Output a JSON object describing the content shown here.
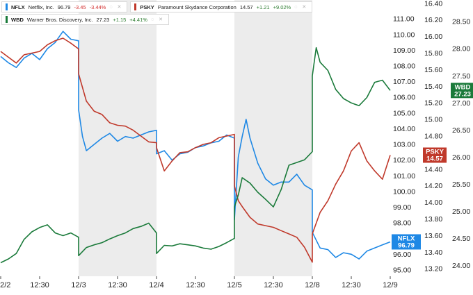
{
  "legend": [
    {
      "symbol": "NFLX",
      "name": "Netflix, Inc.",
      "last": "96.79",
      "change": "-3.45",
      "change_pct": "-3.44%",
      "color": "#1e88e5",
      "change_color": "#d32f2f"
    },
    {
      "symbol": "PSKY",
      "name": "Paramount Skydance Corporation",
      "last": "14.57",
      "change": "+1.21",
      "change_pct": "+9.02%",
      "color": "#c0392b",
      "change_color": "#2e7d32"
    },
    {
      "symbol": "WBD",
      "name": "Warner Bros. Discovery, Inc.",
      "last": "27.23",
      "change": "+1.15",
      "change_pct": "+4.41%",
      "color": "#1a7a3a",
      "change_color": "#2e7d32"
    }
  ],
  "chart_data": {
    "type": "line",
    "x_ticks": [
      "12/2",
      "12:30",
      "12/3",
      "12:30",
      "12/4",
      "12:30",
      "12/5",
      "12:30",
      "12/8",
      "12:30",
      "12/9"
    ],
    "shaded_sessions": [
      "12/3",
      "12/5"
    ],
    "y_axes": [
      {
        "series": "NFLX",
        "side": "right",
        "ylim": [
          94.6,
          112.2
        ],
        "ticks": [
          "95.00",
          "96.00",
          "97.00",
          "98.00",
          "99.00",
          "100.00",
          "101.00",
          "102.00",
          "103.00",
          "104.00",
          "105.00",
          "106.00",
          "107.00",
          "108.00",
          "109.00",
          "110.00",
          "111.00"
        ]
      },
      {
        "series": "PSKY",
        "side": "right",
        "ylim": [
          13.11,
          16.44
        ],
        "ticks": [
          "13.20",
          "13.40",
          "13.60",
          "13.80",
          "14.00",
          "14.20",
          "14.40",
          "14.60",
          "14.80",
          "15.00",
          "15.20",
          "15.40",
          "15.60",
          "15.80",
          "16.00",
          "16.20",
          "16.40"
        ]
      },
      {
        "series": "WBD",
        "side": "right",
        "ylim": [
          23.8,
          28.9
        ],
        "ticks": [
          "24.00",
          "24.50",
          "25.00",
          "25.50",
          "26.00",
          "26.50",
          "27.00",
          "27.50",
          "28.00",
          "28.50"
        ]
      }
    ],
    "badges": [
      {
        "series": "WBD",
        "lines": [
          "WBD",
          "27.23"
        ],
        "value": 27.23,
        "color": "#1a7a3a"
      },
      {
        "series": "PSKY",
        "lines": [
          "PSKY",
          "14.57"
        ],
        "value": 14.57,
        "color": "#c0392b"
      },
      {
        "series": "NFLX",
        "lines": [
          "NFLX",
          "96.79"
        ],
        "value": 96.79,
        "color": "#1e88e5"
      }
    ],
    "series": [
      {
        "name": "NFLX",
        "color": "#1e88e5",
        "points": [
          [
            0,
            108.6
          ],
          [
            0.1,
            108.2
          ],
          [
            0.2,
            107.9
          ],
          [
            0.3,
            108.5
          ],
          [
            0.4,
            108.8
          ],
          [
            0.5,
            108.4
          ],
          [
            0.6,
            109.1
          ],
          [
            0.7,
            109.5
          ],
          [
            0.8,
            110.2
          ],
          [
            0.9,
            109.7
          ],
          [
            1.0,
            109.6
          ],
          [
            1.0,
            105.2
          ],
          [
            1.05,
            103.5
          ],
          [
            1.1,
            102.6
          ],
          [
            1.2,
            103.0
          ],
          [
            1.3,
            103.4
          ],
          [
            1.4,
            103.7
          ],
          [
            1.5,
            103.2
          ],
          [
            1.6,
            103.5
          ],
          [
            1.7,
            103.4
          ],
          [
            1.8,
            103.6
          ],
          [
            1.9,
            103.8
          ],
          [
            2.0,
            103.9
          ],
          [
            2.0,
            102.4
          ],
          [
            2.1,
            102.6
          ],
          [
            2.2,
            102.0
          ],
          [
            2.3,
            102.4
          ],
          [
            2.4,
            102.5
          ],
          [
            2.5,
            102.8
          ],
          [
            2.6,
            102.9
          ],
          [
            2.7,
            103.1
          ],
          [
            2.8,
            103.2
          ],
          [
            2.9,
            103.6
          ],
          [
            3.0,
            103.4
          ],
          [
            3.0,
            98.2
          ],
          [
            3.05,
            102.2
          ],
          [
            3.1,
            103.5
          ],
          [
            3.15,
            104.6
          ],
          [
            3.2,
            103.4
          ],
          [
            3.3,
            101.8
          ],
          [
            3.4,
            100.8
          ],
          [
            3.5,
            100.4
          ],
          [
            3.6,
            100.6
          ],
          [
            3.7,
            100.6
          ],
          [
            3.8,
            101.1
          ],
          [
            3.9,
            100.4
          ],
          [
            4.0,
            100.1
          ],
          [
            4.0,
            97.4
          ],
          [
            4.1,
            96.4
          ],
          [
            4.2,
            96.3
          ],
          [
            4.3,
            95.8
          ],
          [
            4.4,
            96.1
          ],
          [
            4.5,
            96.0
          ],
          [
            4.6,
            95.7
          ],
          [
            4.7,
            96.2
          ],
          [
            4.8,
            96.4
          ],
          [
            4.9,
            96.6
          ],
          [
            5.0,
            96.79
          ]
        ]
      },
      {
        "name": "PSKY",
        "color": "#c0392b",
        "points": [
          [
            0,
            15.82
          ],
          [
            0.1,
            15.75
          ],
          [
            0.2,
            15.68
          ],
          [
            0.3,
            15.78
          ],
          [
            0.4,
            15.8
          ],
          [
            0.5,
            15.82
          ],
          [
            0.6,
            15.9
          ],
          [
            0.7,
            15.95
          ],
          [
            0.8,
            15.98
          ],
          [
            0.9,
            15.92
          ],
          [
            1.0,
            15.85
          ],
          [
            1.0,
            15.55
          ],
          [
            1.1,
            15.22
          ],
          [
            1.2,
            15.1
          ],
          [
            1.3,
            15.06
          ],
          [
            1.4,
            14.96
          ],
          [
            1.5,
            14.93
          ],
          [
            1.6,
            14.92
          ],
          [
            1.7,
            14.87
          ],
          [
            1.8,
            14.8
          ],
          [
            1.9,
            14.73
          ],
          [
            2.0,
            14.72
          ],
          [
            2.0,
            14.66
          ],
          [
            2.1,
            14.38
          ],
          [
            2.2,
            14.5
          ],
          [
            2.3,
            14.6
          ],
          [
            2.4,
            14.61
          ],
          [
            2.5,
            14.66
          ],
          [
            2.6,
            14.7
          ],
          [
            2.7,
            14.72
          ],
          [
            2.8,
            14.78
          ],
          [
            2.9,
            14.8
          ],
          [
            3.0,
            14.82
          ],
          [
            3.0,
            14.2
          ],
          [
            3.05,
            14.02
          ],
          [
            3.1,
            13.95
          ],
          [
            3.2,
            13.82
          ],
          [
            3.3,
            13.74
          ],
          [
            3.4,
            13.72
          ],
          [
            3.5,
            13.7
          ],
          [
            3.6,
            13.66
          ],
          [
            3.7,
            13.62
          ],
          [
            3.8,
            13.58
          ],
          [
            3.9,
            13.46
          ],
          [
            4.0,
            13.28
          ],
          [
            4.0,
            13.62
          ],
          [
            4.1,
            13.88
          ],
          [
            4.2,
            14.02
          ],
          [
            4.3,
            14.22
          ],
          [
            4.4,
            14.38
          ],
          [
            4.5,
            14.62
          ],
          [
            4.6,
            14.72
          ],
          [
            4.7,
            14.5
          ],
          [
            4.8,
            14.38
          ],
          [
            4.9,
            14.28
          ],
          [
            5.0,
            14.57
          ]
        ]
      },
      {
        "name": "WBD",
        "color": "#1a7a3a",
        "points": [
          [
            0,
            24.05
          ],
          [
            0.1,
            24.12
          ],
          [
            0.2,
            24.22
          ],
          [
            0.3,
            24.48
          ],
          [
            0.4,
            24.62
          ],
          [
            0.5,
            24.7
          ],
          [
            0.6,
            24.75
          ],
          [
            0.7,
            24.6
          ],
          [
            0.8,
            24.55
          ],
          [
            0.9,
            24.6
          ],
          [
            1.0,
            24.52
          ],
          [
            1.0,
            24.18
          ],
          [
            1.1,
            24.33
          ],
          [
            1.2,
            24.38
          ],
          [
            1.3,
            24.42
          ],
          [
            1.4,
            24.49
          ],
          [
            1.5,
            24.55
          ],
          [
            1.6,
            24.6
          ],
          [
            1.7,
            24.68
          ],
          [
            1.8,
            24.72
          ],
          [
            1.9,
            24.78
          ],
          [
            2.0,
            24.6
          ],
          [
            2.0,
            24.22
          ],
          [
            2.1,
            24.37
          ],
          [
            2.2,
            24.36
          ],
          [
            2.3,
            24.4
          ],
          [
            2.4,
            24.38
          ],
          [
            2.5,
            24.36
          ],
          [
            2.6,
            24.32
          ],
          [
            2.7,
            24.3
          ],
          [
            2.8,
            24.35
          ],
          [
            2.9,
            24.42
          ],
          [
            3.0,
            24.5
          ],
          [
            3.0,
            25.08
          ],
          [
            3.05,
            25.3
          ],
          [
            3.1,
            25.62
          ],
          [
            3.2,
            25.52
          ],
          [
            3.3,
            25.35
          ],
          [
            3.4,
            25.22
          ],
          [
            3.5,
            25.08
          ],
          [
            3.6,
            25.4
          ],
          [
            3.7,
            25.85
          ],
          [
            3.8,
            25.9
          ],
          [
            3.9,
            25.95
          ],
          [
            4.0,
            26.1
          ],
          [
            4.0,
            27.5
          ],
          [
            4.05,
            28.02
          ],
          [
            4.1,
            27.75
          ],
          [
            4.2,
            27.6
          ],
          [
            4.3,
            27.25
          ],
          [
            4.4,
            27.08
          ],
          [
            4.5,
            27.0
          ],
          [
            4.6,
            26.95
          ],
          [
            4.7,
            27.1
          ],
          [
            4.8,
            27.38
          ],
          [
            4.9,
            27.42
          ],
          [
            5.0,
            27.23
          ]
        ]
      }
    ]
  }
}
